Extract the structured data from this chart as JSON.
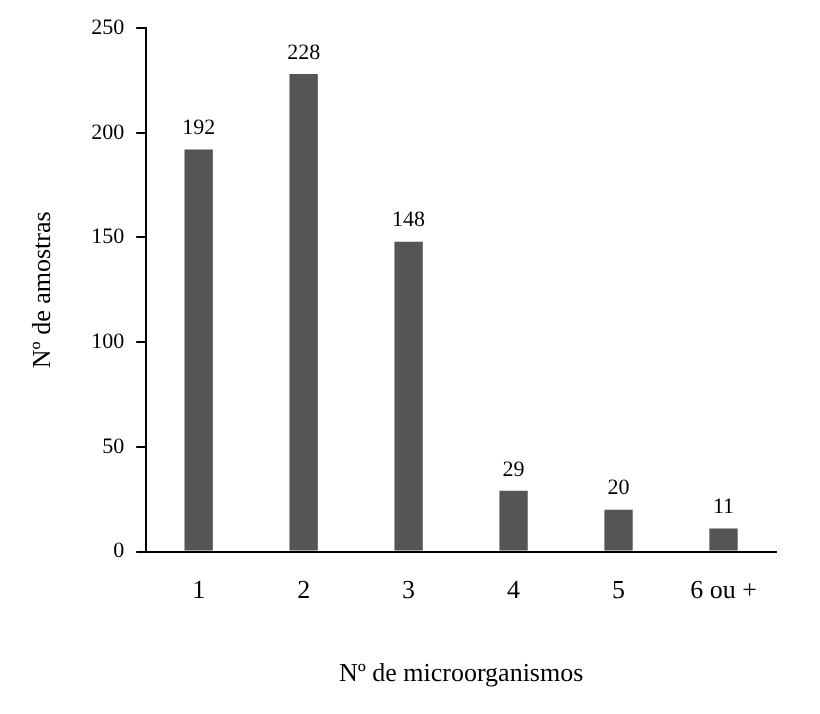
{
  "chart_data": {
    "type": "bar",
    "xlabel": "Nº de microorganismos",
    "ylabel": "Nº de amostras",
    "categories": [
      "1",
      "2",
      "3",
      "4",
      "5",
      "6 ou +"
    ],
    "values": [
      192,
      228,
      148,
      29,
      20,
      11
    ],
    "color": "#555555",
    "ylim": [
      0,
      250
    ],
    "yticks": [
      0,
      50,
      100,
      150,
      200,
      250
    ],
    "grid": false,
    "legend": false,
    "data_labels": true
  }
}
